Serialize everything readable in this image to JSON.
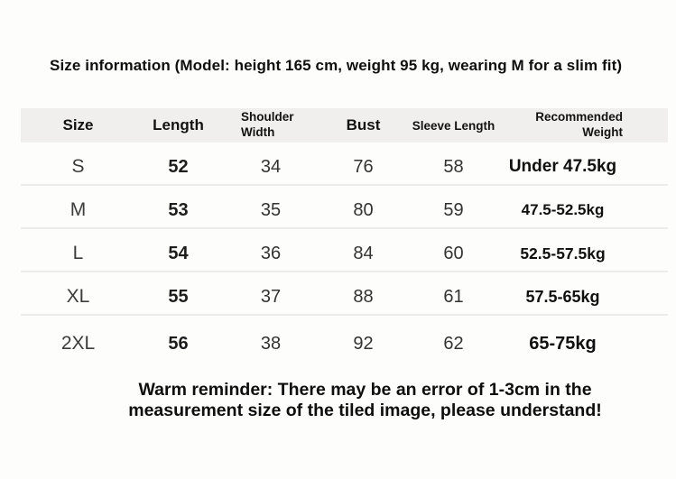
{
  "chart_data": {
    "type": "table",
    "title": "Size information (Model: height 165 cm, weight 95 kg, wearing M for a slim fit)",
    "columns": [
      "Size",
      "Length",
      "Shoulder Width",
      "Bust",
      "Sleeve Length",
      "Recommended Weight"
    ],
    "rows": [
      [
        "S",
        52,
        34,
        76,
        58,
        "Under 47.5kg"
      ],
      [
        "M",
        53,
        35,
        80,
        59,
        "47.5-52.5kg"
      ],
      [
        "L",
        54,
        36,
        84,
        60,
        "52.5-57.5kg"
      ],
      [
        "XL",
        55,
        37,
        88,
        61,
        "57.5-65kg"
      ],
      [
        "2XL",
        56,
        38,
        92,
        62,
        "65-75kg"
      ]
    ],
    "note": "Warm reminder: There may be an error of 1-3cm in the measurement size of the tiled image, please understand!",
    "layout": {
      "header_background": "#f0efee",
      "row_separator": "#edecea",
      "gridlines": "horizontal-only",
      "weight_column_alignment": "right"
    }
  },
  "footer": {
    "line1": "Warm reminder: There may be an error of 1-3cm in the",
    "line2": "measurement size of the tiled image, please understand!"
  },
  "colors": {
    "background": "#fdfdfc",
    "header_band": "#f0efee",
    "row_separator": "#edecea",
    "text_primary": "#111111",
    "text_secondary": "#333333"
  }
}
